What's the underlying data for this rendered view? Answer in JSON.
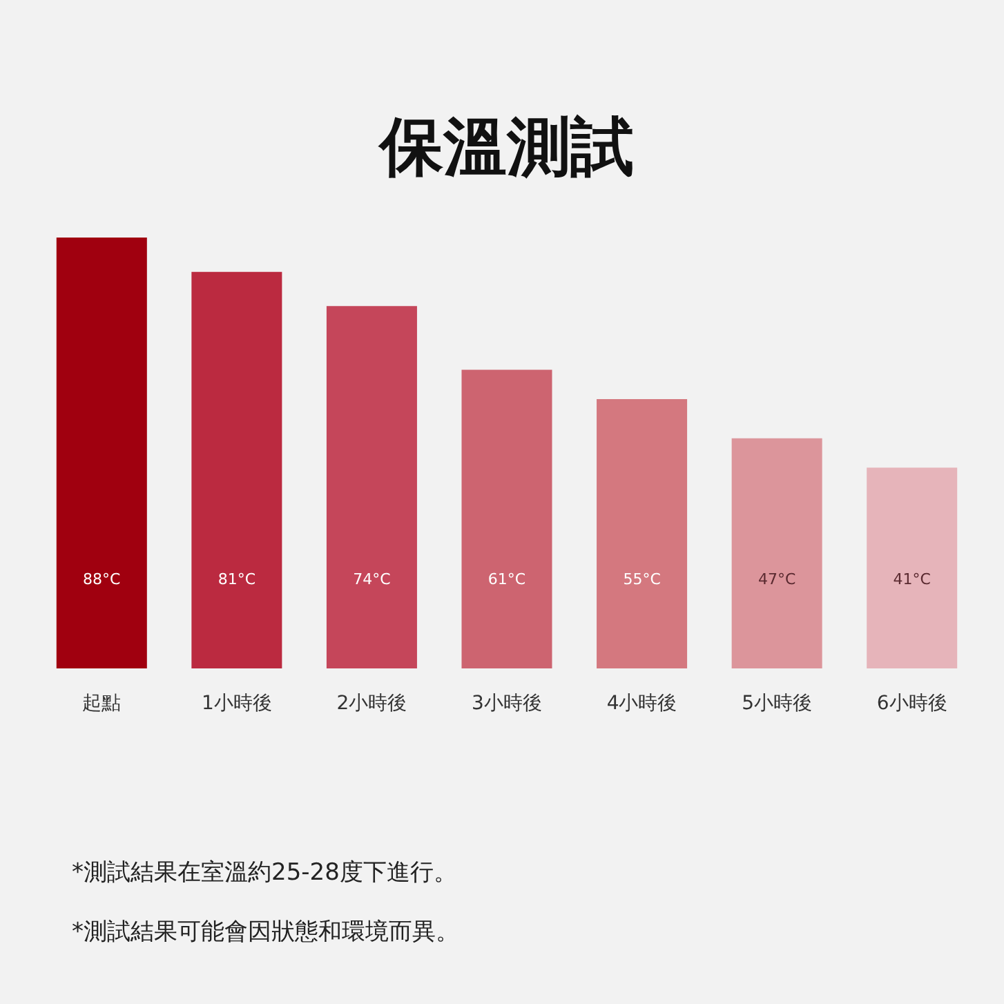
{
  "chart_data": {
    "type": "bar",
    "title": "保溫測試",
    "categories": [
      "起點",
      "1小時後",
      "2小時後",
      "3小時後",
      "4小時後",
      "5小時後",
      "6小時後"
    ],
    "values": [
      88,
      81,
      74,
      61,
      55,
      47,
      41
    ],
    "colors": [
      "#a0000f",
      "#bb2a40",
      "#c5465a",
      "#cd6470",
      "#d4787f",
      "#dc959b",
      "#e6b4ba"
    ],
    "value_labels": [
      "88°C",
      "81°C",
      "74°C",
      "61°C",
      "55°C",
      "47°C",
      "41°C"
    ],
    "annotations": [
      "*測試結果在室溫約25-28度下進行。",
      "*測試結果可能會因狀態和環境而異。"
    ]
  }
}
